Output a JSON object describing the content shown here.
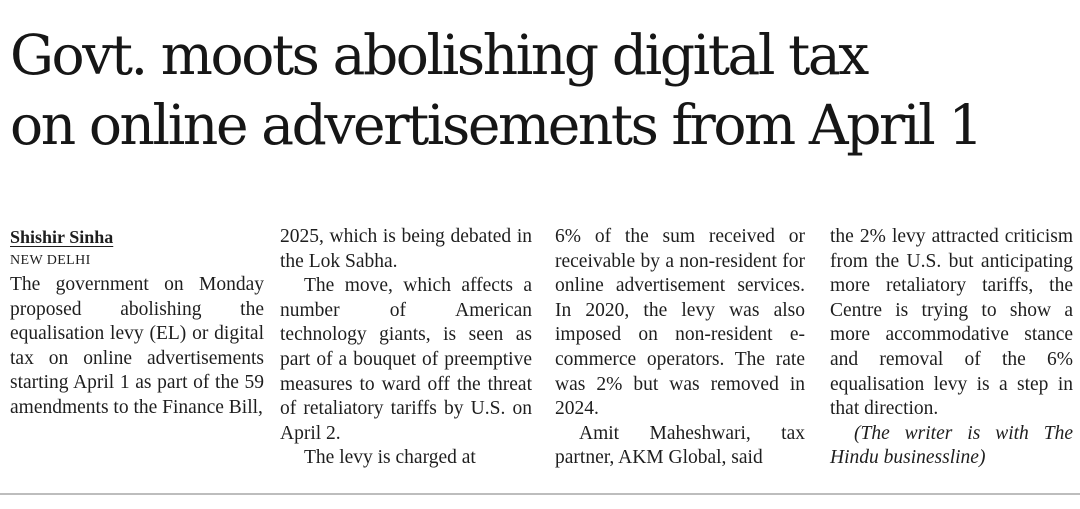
{
  "headline": {
    "line1": "Govt. moots abolishing digital tax",
    "line2": "on online advertisements from April 1"
  },
  "byline": {
    "author": "Shishir Sinha",
    "dateline": "NEW DELHI"
  },
  "body": {
    "p1": "The government on Mon­day proposed abolishing the equalisation levy (EL) or digital tax on online ad­vertisements starting April 1 as part of the 59 amend­ments to the Finance Bill, 2025, which is being debat­ed in the Lok Sabha.",
    "p2": "The move, which affects a number of American technology giants, is seen as part of a bouquet of pre­emptive measures to ward off the threat of retaliatory tariffs by U.S. on April 2.",
    "p3": "The levy is charged at 6% of the sum received or receivable by a non-resi­dent for online advertise­ment services. In 2020, the levy was also imposed on non-resident e-commerce operators. The rate was 2% but was removed in 2024.",
    "p4": "Amit Maheshwari, tax partner, AKM Global, said the 2% levy attracted criti­cism from the U.S. but anti­cipating more retaliatory tariffs, the Centre is trying to show a more accommo­dative stance and removal of the 6% equalisation levy is a step in that direction.",
    "note": "(The writer is with The Hindu businessline)"
  }
}
